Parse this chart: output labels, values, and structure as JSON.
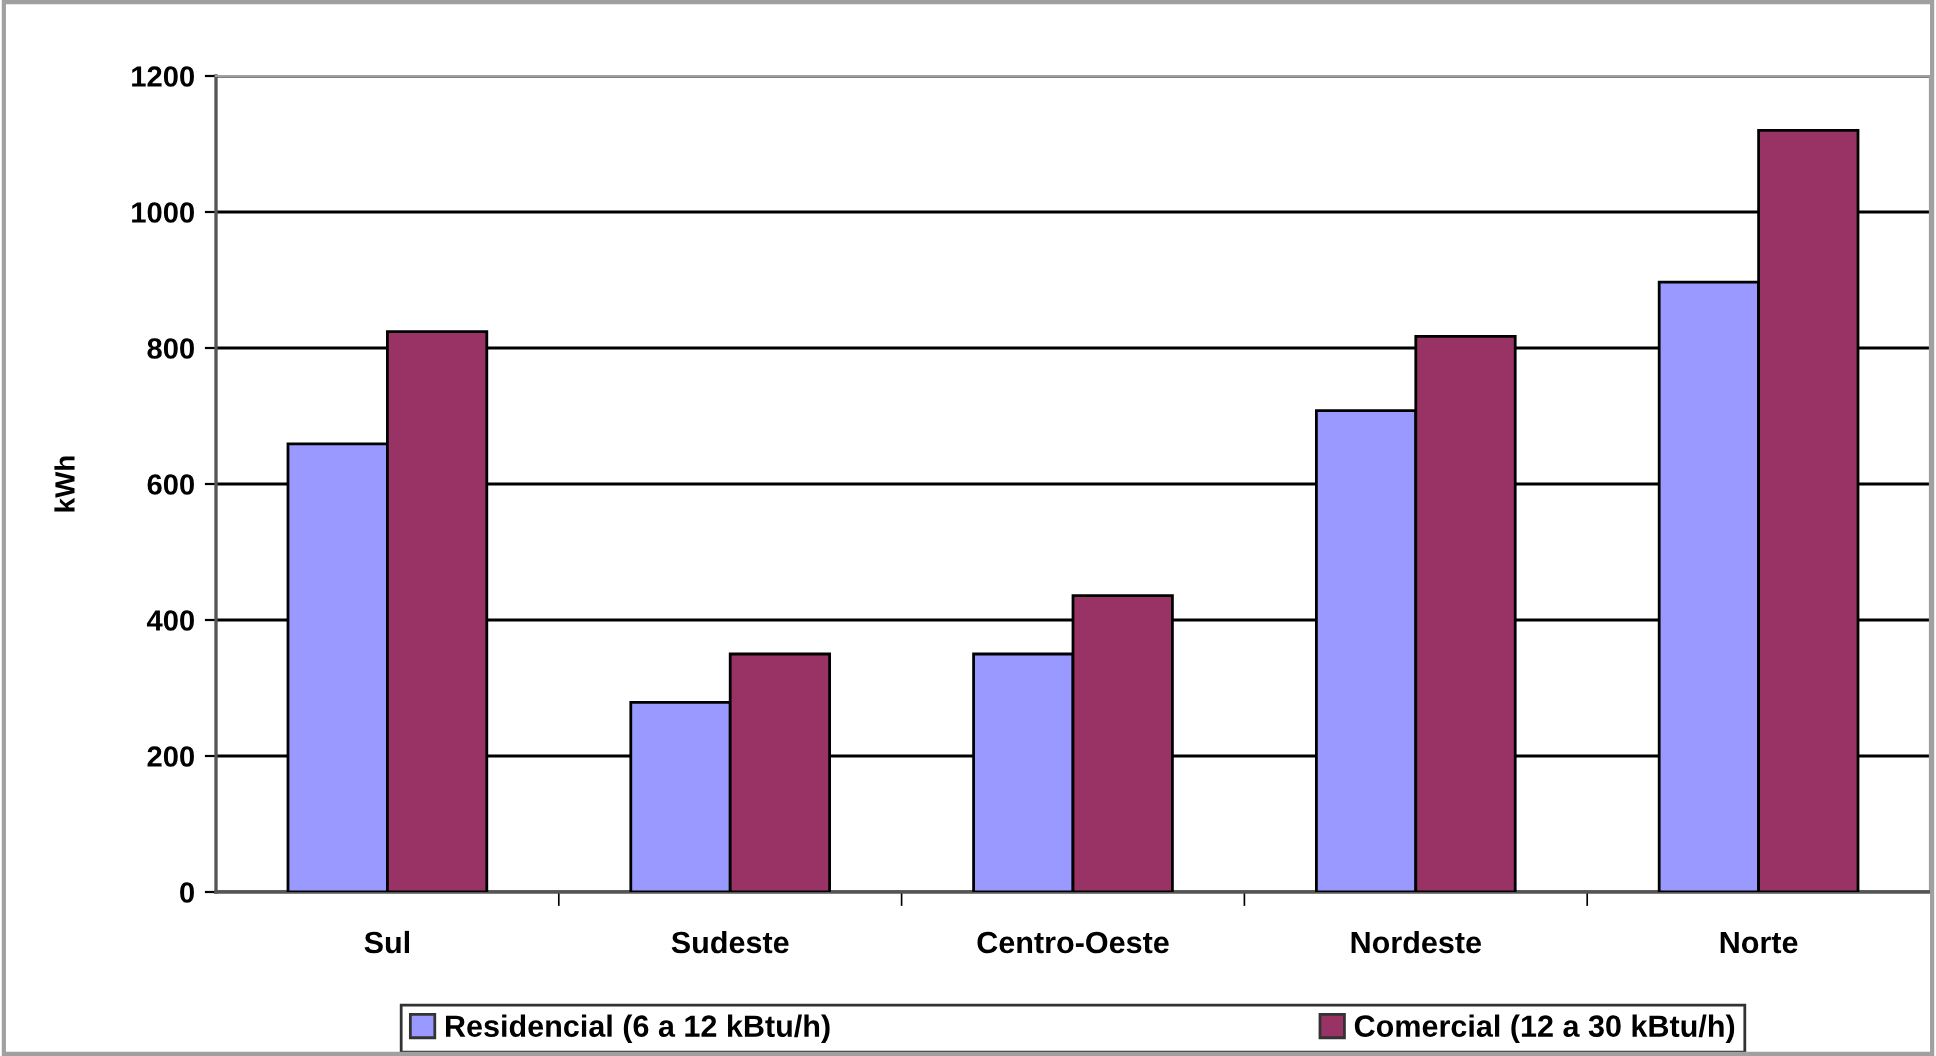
{
  "chart_data": {
    "type": "bar",
    "ylabel": "kWh",
    "categories": [
      "Sul",
      "Sudeste",
      "Centro-Oeste",
      "Nordeste",
      "Norte"
    ],
    "series": [
      {
        "name": "Residencial (6 a 12 kBtu/h)",
        "color": "#9999ff",
        "values": [
          659,
          279,
          350,
          708,
          897
        ]
      },
      {
        "name": "Comercial (12 a 30 kBtu/h)",
        "color": "#993366",
        "values": [
          824,
          350,
          436,
          817,
          1120
        ]
      }
    ],
    "ylim": [
      0,
      1200
    ],
    "yticks": [
      0,
      200,
      400,
      600,
      800,
      1000,
      1200
    ],
    "grid": "y",
    "legend": "bottom"
  }
}
